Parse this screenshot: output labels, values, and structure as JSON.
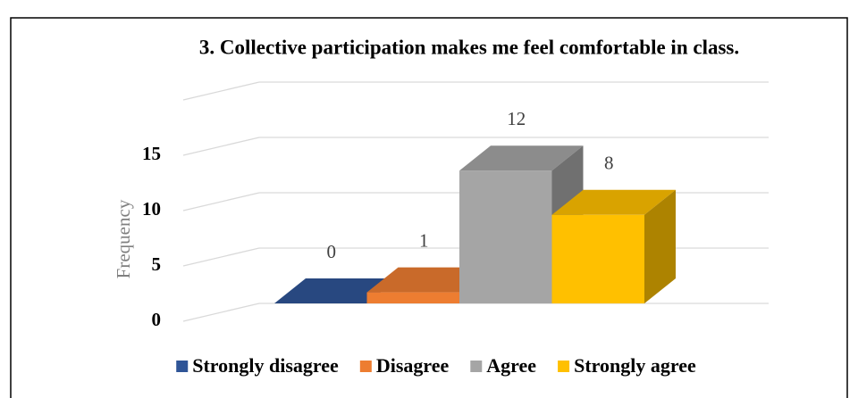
{
  "chart_data": {
    "type": "bar",
    "title": "3. Collective participation makes me feel comfortable in class.",
    "y_label": "Frequency",
    "categories": [
      "Strongly disagree",
      "Disagree",
      "Agree",
      "Strongly agree"
    ],
    "values": [
      0,
      1,
      12,
      8
    ],
    "colors": [
      "#2f5597",
      "#ed7d31",
      "#a5a5a5",
      "#ffc000"
    ],
    "ylim": [
      0,
      20
    ],
    "yticks": [
      0,
      5,
      10,
      15
    ],
    "grid": true,
    "legend": "bottom"
  }
}
